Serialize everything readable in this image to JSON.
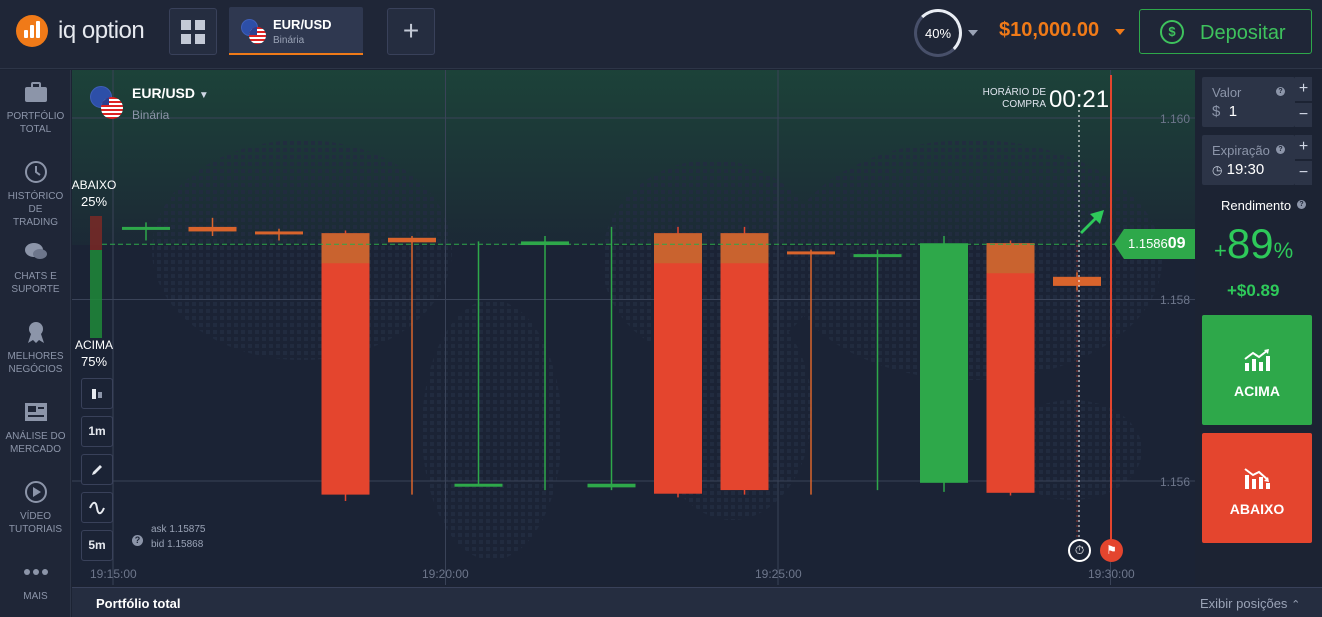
{
  "header": {
    "logo_text": "iq option",
    "asset_tab": {
      "name": "EUR/USD",
      "type": "Binária"
    },
    "gauge_value": "40%",
    "balance": "$10,000.00",
    "deposit_label": "Depositar"
  },
  "sidebar": {
    "items": [
      {
        "label_line1": "PORTFÓLIO",
        "label_line2": "TOTAL",
        "icon": "briefcase-icon"
      },
      {
        "label_line1": "HISTÓRICO DE",
        "label_line2": "TRADING",
        "icon": "history-icon"
      },
      {
        "label_line1": "CHATS E",
        "label_line2": "SUPORTE",
        "icon": "chat-icon"
      },
      {
        "label_line1": "MELHORES",
        "label_line2": "NEGÓCIOS",
        "icon": "award-icon"
      },
      {
        "label_line1": "ANÁLISE DO",
        "label_line2": "MERCADO",
        "icon": "newspaper-icon"
      },
      {
        "label_line1": "VÍDEO",
        "label_line2": "TUTORIAIS",
        "icon": "play-icon"
      },
      {
        "label_line1": "MAIS",
        "label_line2": "",
        "icon": "more-icon"
      }
    ]
  },
  "chart": {
    "pair_name": "EUR/USD",
    "pair_type": "Binária",
    "sentiment_down_label": "ABAIXO",
    "sentiment_down_value": "25%",
    "sentiment_up_label": "ACIMA",
    "sentiment_up_value": "75%",
    "tools": [
      "1m",
      "5m"
    ],
    "ask": "ask 1.15875",
    "bid": "bid 1.15868",
    "purchase_time_label_1": "HORÁRIO DE",
    "purchase_time_label_2": "COMPRA",
    "countdown": "00:21",
    "current_price_main": "1.1586",
    "current_price_end": "09",
    "price_ticks": [
      "1.160",
      "1.158",
      "1.156"
    ],
    "time_ticks": [
      "19:15:00",
      "19:20:00",
      "19:25:00",
      "19:30:00"
    ]
  },
  "chart_data": {
    "type": "candlestick",
    "x": [
      "19:15:00",
      "19:16:00",
      "19:17:00",
      "19:18:00",
      "19:19:00",
      "19:20:00",
      "19:21:00",
      "19:22:00",
      "19:23:00",
      "19:24:00",
      "19:25:00",
      "19:26:00",
      "19:27:00",
      "19:28:00",
      "19:29:00"
    ],
    "candles": [
      {
        "open": 1.1588,
        "close": 1.1588,
        "high": 1.15885,
        "low": 1.15865,
        "color": "green"
      },
      {
        "open": 1.1588,
        "close": 1.15875,
        "high": 1.1589,
        "low": 1.1587,
        "color": "orange"
      },
      {
        "open": 1.15875,
        "close": 1.15872,
        "high": 1.15878,
        "low": 1.15865,
        "color": "orange"
      },
      {
        "open": 1.15873,
        "close": 1.15585,
        "high": 1.15876,
        "low": 1.15578,
        "color": "red"
      },
      {
        "open": 1.15868,
        "close": 1.15863,
        "high": 1.1587,
        "low": 1.15585,
        "color": "orange"
      },
      {
        "open": 1.15597,
        "close": 1.15597,
        "high": 1.15864,
        "low": 1.15595,
        "color": "green"
      },
      {
        "open": 1.1586,
        "close": 1.15864,
        "high": 1.1587,
        "low": 1.1559,
        "color": "green"
      },
      {
        "open": 1.15597,
        "close": 1.15593,
        "high": 1.1588,
        "low": 1.1559,
        "color": "green"
      },
      {
        "open": 1.15873,
        "close": 1.15586,
        "high": 1.1588,
        "low": 1.15582,
        "color": "red"
      },
      {
        "open": 1.15873,
        "close": 1.1559,
        "high": 1.1588,
        "low": 1.15585,
        "color": "red"
      },
      {
        "open": 1.15853,
        "close": 1.1585,
        "high": 1.15855,
        "low": 1.15585,
        "color": "orange"
      },
      {
        "open": 1.1585,
        "close": 1.1585,
        "high": 1.15855,
        "low": 1.1559,
        "color": "green"
      },
      {
        "open": 1.15598,
        "close": 1.15862,
        "high": 1.1587,
        "low": 1.15588,
        "color": "green"
      },
      {
        "open": 1.15862,
        "close": 1.15587,
        "high": 1.15865,
        "low": 1.15584,
        "color": "red"
      },
      {
        "open": 1.15825,
        "close": 1.15815,
        "high": 1.1583,
        "low": 1.1581,
        "color": "orange"
      }
    ],
    "yticks": [
      1.16,
      1.158,
      1.156
    ],
    "current_price": 1.158609,
    "ylim": [
      1.1555,
      1.161
    ]
  },
  "panel": {
    "value_label": "Valor",
    "value_currency": "$",
    "value_amount": "1",
    "expiry_label": "Expiração",
    "expiry_time": "19:30",
    "yield_label": "Rendimento",
    "yield_percent": "89",
    "yield_plus": "+",
    "yield_suffix": "%",
    "profit": "+$0.89",
    "up_label": "ACIMA",
    "down_label": "ABAIXO"
  },
  "footer": {
    "title": "Portfólio total",
    "positions": "Exibir posições"
  },
  "colors": {
    "accent": "#f07a18",
    "green": "#2ea84a",
    "red": "#e4452e",
    "bg": "#1b2335"
  }
}
